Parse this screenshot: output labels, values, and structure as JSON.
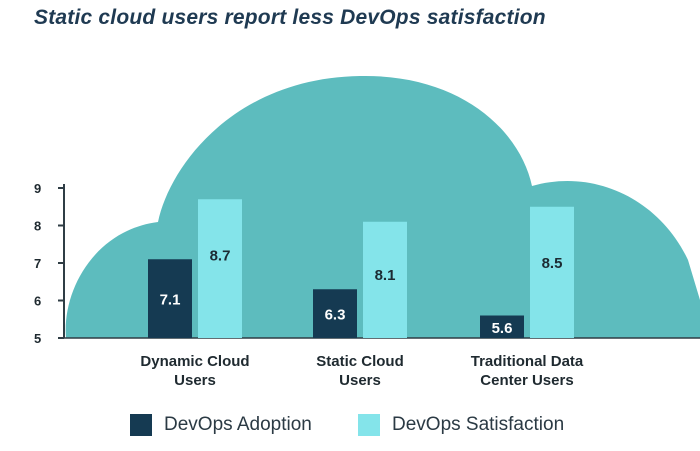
{
  "chart_data": {
    "type": "bar",
    "title": "Static cloud users report less DevOps satisfaction",
    "categories": [
      [
        "Dynamic Cloud",
        "Users"
      ],
      [
        "Static Cloud",
        "Users"
      ],
      [
        "Traditional Data",
        "Center Users"
      ]
    ],
    "series": [
      {
        "name": "DevOps Adoption",
        "values": [
          7.1,
          6.3,
          5.6
        ],
        "color": "#153a52",
        "label_color": "#ffffff"
      },
      {
        "name": "DevOps Satisfaction",
        "values": [
          8.7,
          8.1,
          8.5
        ],
        "color": "#84e4ea",
        "label_color": "#1c2b33"
      }
    ],
    "ylim": [
      5,
      9
    ],
    "yticks": [
      5,
      6,
      7,
      8,
      9
    ],
    "legend_position": "bottom",
    "background_color": "#5dbcbe",
    "axis_color": "#2f3d45"
  }
}
